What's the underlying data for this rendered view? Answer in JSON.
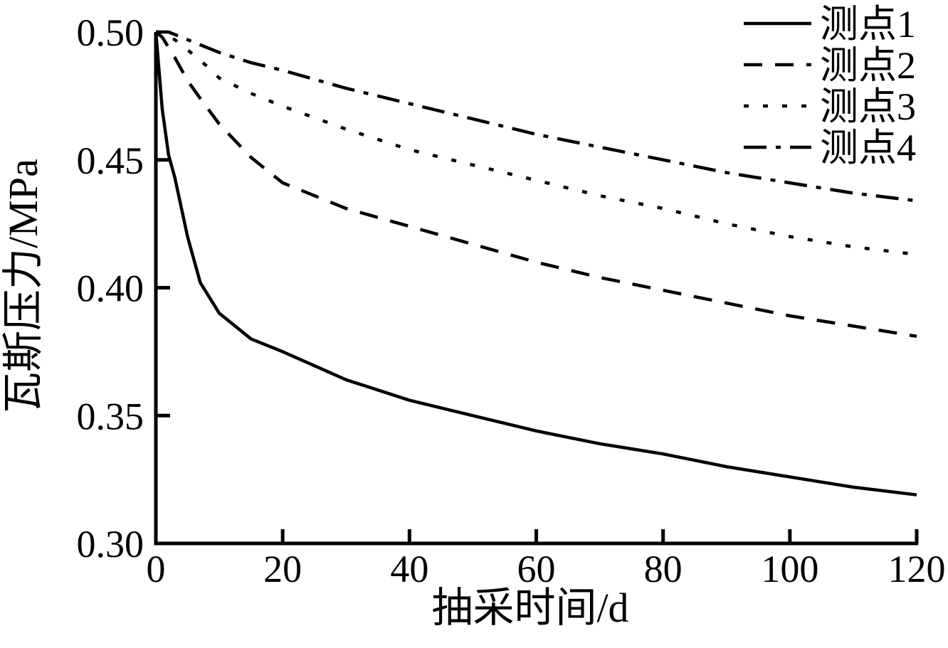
{
  "figure": {
    "background": "#ffffff",
    "axis_color": "#000000",
    "curve_color": "#000000"
  },
  "chart_data": {
    "type": "line",
    "title": "",
    "xlabel": "抽采时间/d",
    "ylabel": "瓦斯压力/MPa",
    "xlim": [
      0,
      120
    ],
    "ylim": [
      0.3,
      0.5
    ],
    "x_ticks": [
      "0",
      "20",
      "40",
      "60",
      "80",
      "100",
      "120"
    ],
    "x_tick_values": [
      0,
      20,
      40,
      60,
      80,
      100,
      120
    ],
    "y_ticks": [
      "0.30",
      "0.35",
      "0.40",
      "0.45",
      "0.50"
    ],
    "y_tick_values": [
      0.3,
      0.35,
      0.4,
      0.45,
      0.5
    ],
    "grid": false,
    "legend_position": "top-right",
    "x": [
      0,
      1,
      2,
      3,
      5,
      7,
      10,
      15,
      20,
      30,
      40,
      50,
      60,
      70,
      80,
      90,
      100,
      110,
      120
    ],
    "series": [
      {
        "name": "测点1",
        "line_style": "solid",
        "color": "#000000",
        "values": [
          0.5,
          0.47,
          0.452,
          0.443,
          0.42,
          0.402,
          0.39,
          0.38,
          0.375,
          0.364,
          0.356,
          0.35,
          0.344,
          0.339,
          0.335,
          0.33,
          0.326,
          0.322,
          0.319
        ]
      },
      {
        "name": "测点2",
        "line_style": "dashed",
        "color": "#000000",
        "values": [
          0.5,
          0.498,
          0.494,
          0.49,
          0.481,
          0.474,
          0.464,
          0.451,
          0.441,
          0.431,
          0.424,
          0.417,
          0.41,
          0.404,
          0.399,
          0.394,
          0.389,
          0.385,
          0.381
        ]
      },
      {
        "name": "测点3",
        "line_style": "dotted",
        "color": "#000000",
        "values": [
          0.5,
          0.5,
          0.498,
          0.497,
          0.493,
          0.489,
          0.482,
          0.476,
          0.471,
          0.462,
          0.454,
          0.448,
          0.442,
          0.436,
          0.431,
          0.425,
          0.42,
          0.416,
          0.413
        ]
      },
      {
        "name": "测点4",
        "line_style": "dash-dot",
        "color": "#000000",
        "values": [
          0.5,
          0.5,
          0.5,
          0.499,
          0.497,
          0.495,
          0.492,
          0.488,
          0.485,
          0.478,
          0.472,
          0.466,
          0.46,
          0.455,
          0.45,
          0.445,
          0.441,
          0.437,
          0.434
        ]
      }
    ]
  }
}
